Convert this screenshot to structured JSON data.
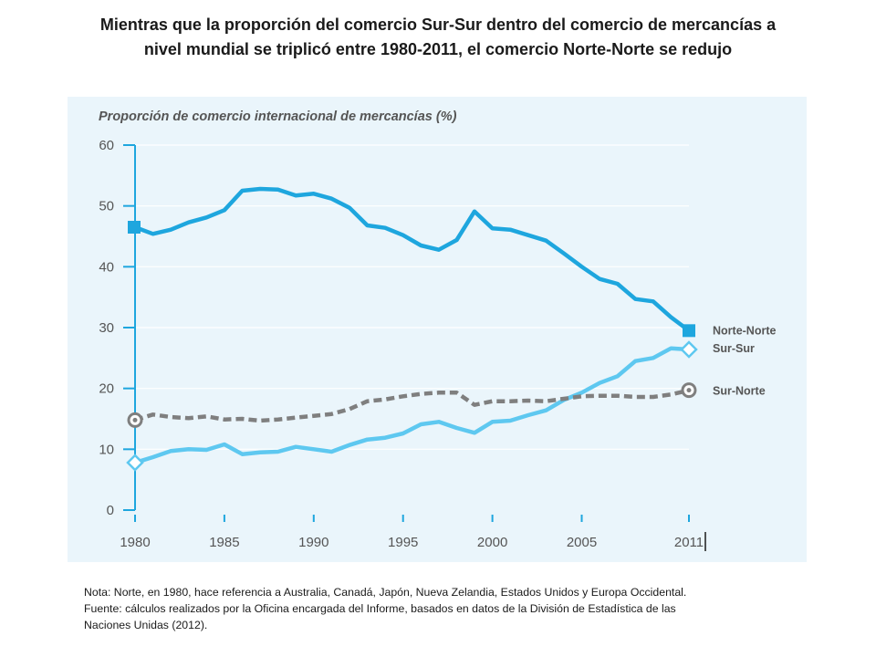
{
  "headline": {
    "line1": "Mientras que la proporción del comercio Sur-Sur dentro del comercio de mercancías a",
    "line2": "nivel mundial  se triplicó entre 1980-2011, el comercio Norte-Norte se redujo"
  },
  "notes": {
    "line1": "Nota: Norte, en 1980,  hace referencia a Australia, Canadá, Japón, Nueva Zelandia, Estados Unidos y Europa Occidental.",
    "line2": "Fuente: cálculos realizados por la Oficina encargada del Informe, basados en datos de la División de Estadística de las",
    "line3": "Naciones Unidas (2012)."
  },
  "colors": {
    "norte_norte": "#1ea6de",
    "sur_sur": "#5ec8f0",
    "sur_norte": "#7f7f7f",
    "axis": "#1ea6de",
    "panel": "#eaf5fb",
    "grid": "#ffffff",
    "title": "#555555"
  },
  "chart_data": {
    "type": "line",
    "title": "Proporción de comercio internacional de mercancías (%)",
    "xlabel": "",
    "ylabel": "",
    "xlim": [
      1980,
      2011
    ],
    "ylim": [
      0,
      60
    ],
    "grid": true,
    "x_ticks": [
      1980,
      1985,
      1990,
      1995,
      2000,
      2005,
      2011
    ],
    "x_tick_labels": [
      "1980",
      "1985",
      "1990",
      "1995",
      "2000",
      "2005",
      "2011"
    ],
    "y_ticks": [
      0,
      10,
      20,
      30,
      40,
      50,
      60
    ],
    "y_tick_labels": [
      "0",
      "10",
      "20",
      "30",
      "40",
      "50",
      "60"
    ],
    "x": [
      1980,
      1981,
      1982,
      1983,
      1984,
      1985,
      1986,
      1987,
      1988,
      1989,
      1990,
      1991,
      1992,
      1993,
      1994,
      1995,
      1996,
      1997,
      1998,
      1999,
      2000,
      2001,
      2002,
      2003,
      2004,
      2005,
      2006,
      2007,
      2008,
      2009,
      2010,
      2011
    ],
    "series": [
      {
        "name": "Norte-Norte",
        "style": "solid",
        "marker": "square",
        "values": [
          46.5,
          45.4,
          46.1,
          47.3,
          48.1,
          49.3,
          52.5,
          52.8,
          52.7,
          51.7,
          52.0,
          51.2,
          49.7,
          46.8,
          46.4,
          45.2,
          43.5,
          42.8,
          44.4,
          49.1,
          46.3,
          46.1,
          45.2,
          44.3,
          42.2,
          40.0,
          38.0,
          37.2,
          34.7,
          34.3,
          31.7,
          29.5
        ]
      },
      {
        "name": "Sur-Sur",
        "style": "solid",
        "marker": "diamond",
        "values": [
          7.8,
          8.7,
          9.7,
          10.0,
          9.9,
          10.8,
          9.2,
          9.5,
          9.6,
          10.4,
          10.0,
          9.6,
          10.7,
          11.6,
          11.9,
          12.6,
          14.1,
          14.5,
          13.5,
          12.7,
          14.5,
          14.7,
          15.6,
          16.4,
          18.1,
          19.3,
          20.9,
          22.0,
          24.5,
          25.0,
          26.6,
          26.4
        ]
      },
      {
        "name": "Sur-Norte",
        "style": "dashed",
        "marker": "circle-dot",
        "values": [
          14.8,
          15.7,
          15.3,
          15.1,
          15.4,
          14.9,
          15.0,
          14.7,
          14.9,
          15.2,
          15.5,
          15.8,
          16.6,
          17.9,
          18.2,
          18.7,
          19.1,
          19.3,
          19.3,
          17.3,
          17.9,
          17.9,
          18.0,
          17.9,
          18.3,
          18.7,
          18.8,
          18.8,
          18.6,
          18.6,
          19.0,
          19.7
        ]
      }
    ]
  }
}
